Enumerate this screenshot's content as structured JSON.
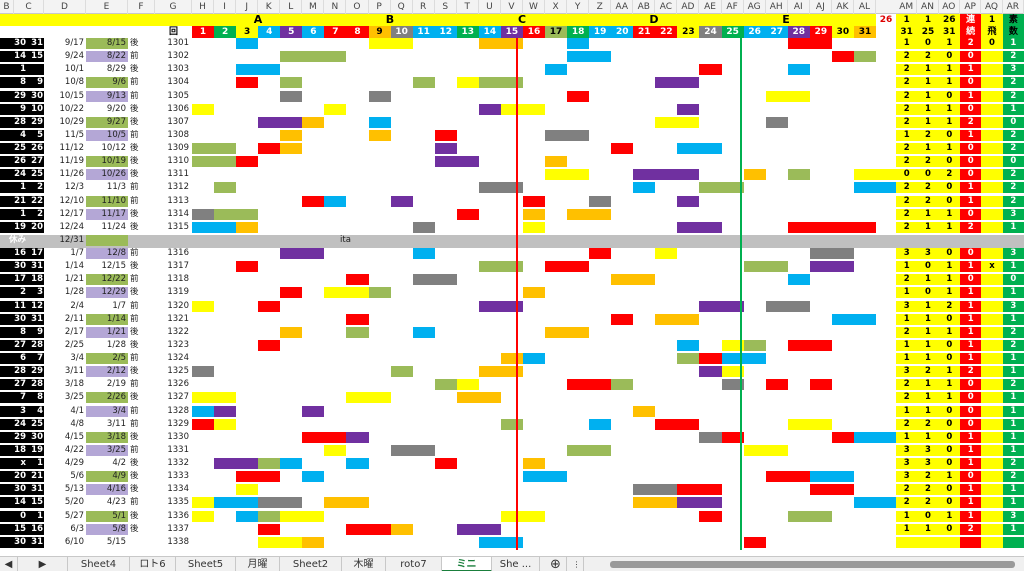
{
  "columns": [
    "B",
    "C",
    "D",
    "E",
    "F",
    "G",
    "H",
    "I",
    "J",
    "K",
    "L",
    "M",
    "N",
    "O",
    "P",
    "Q",
    "R",
    "S",
    "T",
    "U",
    "V",
    "W",
    "X",
    "Y",
    "Z",
    "AA",
    "AB",
    "AC",
    "AD",
    "AE",
    "AF",
    "AG",
    "AH",
    "AI",
    "AJ",
    "AK",
    "AL",
    "AM",
    "AN",
    "AO",
    "AP",
    "AQ",
    "AR"
  ],
  "groups": [
    {
      "label": "A"
    },
    {
      "label": "B"
    },
    {
      "label": "C"
    },
    {
      "label": "D"
    },
    {
      "label": "E"
    }
  ],
  "header": {
    "f_label": "回",
    "al_value": "26",
    "side_labels": [
      {
        "top": "1",
        "bottom": "31"
      },
      {
        "top": "1",
        "bottom": "25"
      },
      {
        "top": "26",
        "bottom": "31"
      },
      {
        "top": "連",
        "bottom": "続"
      },
      {
        "top": "1",
        "bottom": "飛"
      },
      {
        "top": "素",
        "bottom": "数"
      }
    ],
    "numbers": [
      "1",
      "2",
      "3",
      "4",
      "5",
      "6",
      "7",
      "8",
      "9",
      "10",
      "11",
      "12",
      "13",
      "14",
      "15",
      "16",
      "17",
      "18",
      "19",
      "20",
      "21",
      "22",
      "23",
      "24",
      "25",
      "26",
      "27",
      "28",
      "29",
      "30",
      "31"
    ]
  },
  "rows": [
    {
      "a": "30",
      "b": "31",
      "d1": "9/17",
      "d2": "8/15",
      "k": "後",
      "id": "1301"
    },
    {
      "a": "14",
      "b": "15",
      "d1": "9/24",
      "d2": "8/22",
      "k": "前",
      "id": "1302"
    },
    {
      "a": "1",
      "b": "",
      "d1": "10/1",
      "d2": "8/29",
      "k": "後",
      "id": "1303"
    },
    {
      "a": "8",
      "b": "9",
      "d1": "10/8",
      "d2": "9/6",
      "k": "前",
      "id": "1304"
    },
    {
      "a": "29",
      "b": "30",
      "d1": "10/15",
      "d2": "9/13",
      "k": "前",
      "id": "1305"
    },
    {
      "a": "9",
      "b": "10",
      "d1": "10/22",
      "d2": "9/20",
      "k": "後",
      "id": "1306"
    },
    {
      "a": "28",
      "b": "29",
      "d1": "10/29",
      "d2": "9/27",
      "k": "後",
      "id": "1307"
    },
    {
      "a": "4",
      "b": "5",
      "d1": "11/5",
      "d2": "10/5",
      "k": "前",
      "id": "1308"
    },
    {
      "a": "25",
      "b": "26",
      "d1": "11/12",
      "d2": "10/12",
      "k": "後",
      "id": "1309"
    },
    {
      "a": "26",
      "b": "27",
      "d1": "11/19",
      "d2": "10/19",
      "k": "後",
      "id": "1310"
    },
    {
      "a": "24",
      "b": "25",
      "d1": "11/26",
      "d2": "10/26",
      "k": "後",
      "id": "1311"
    },
    {
      "a": "1",
      "b": "2",
      "d1": "12/3",
      "d2": "11/3",
      "k": "前",
      "id": "1312"
    },
    {
      "a": "21",
      "b": "22",
      "d1": "12/10",
      "d2": "11/10",
      "k": "前",
      "id": "1313"
    },
    {
      "a": "1",
      "b": "2",
      "d1": "12/17",
      "d2": "11/17",
      "k": "後",
      "id": "1314"
    },
    {
      "a": "19",
      "b": "20",
      "d1": "12/24",
      "d2": "11/24",
      "k": "後",
      "id": "1315"
    },
    {
      "a": "休み",
      "b": "",
      "d1": "12/31",
      "d2": "",
      "k": "",
      "id": "",
      "note": "ita"
    },
    {
      "a": "16",
      "b": "17",
      "d1": "1/7",
      "d2": "12/8",
      "k": "前",
      "id": "1316"
    },
    {
      "a": "30",
      "b": "31",
      "d1": "1/14",
      "d2": "12/15",
      "k": "後",
      "id": "1317"
    },
    {
      "a": "17",
      "b": "18",
      "d1": "1/21",
      "d2": "12/22",
      "k": "前",
      "id": "1318"
    },
    {
      "a": "2",
      "b": "3",
      "d1": "1/28",
      "d2": "12/29",
      "k": "後",
      "id": "1319"
    },
    {
      "a": "11",
      "b": "12",
      "d1": "2/4",
      "d2": "1/7",
      "k": "前",
      "id": "1320"
    },
    {
      "a": "30",
      "b": "31",
      "d1": "2/11",
      "d2": "1/14",
      "k": "前",
      "id": "1321"
    },
    {
      "a": "8",
      "b": "9",
      "d1": "2/17",
      "d2": "1/21",
      "k": "後",
      "id": "1322"
    },
    {
      "a": "27",
      "b": "28",
      "d1": "2/25",
      "d2": "1/28",
      "k": "後",
      "id": "1323"
    },
    {
      "a": "6",
      "b": "7",
      "d1": "3/4",
      "d2": "2/5",
      "k": "前",
      "id": "1324"
    },
    {
      "a": "28",
      "b": "29",
      "d1": "3/11",
      "d2": "2/12",
      "k": "後",
      "id": "1325"
    },
    {
      "a": "27",
      "b": "28",
      "d1": "3/18",
      "d2": "2/19",
      "k": "前",
      "id": "1326"
    },
    {
      "a": "7",
      "b": "8",
      "d1": "3/25",
      "d2": "2/26",
      "k": "後",
      "id": "1327"
    },
    {
      "a": "3",
      "b": "4",
      "d1": "4/1",
      "d2": "3/4",
      "k": "前",
      "id": "1328"
    },
    {
      "a": "24",
      "b": "25",
      "d1": "4/8",
      "d2": "3/11",
      "k": "前",
      "id": "1329"
    },
    {
      "a": "29",
      "b": "30",
      "d1": "4/15",
      "d2": "3/18",
      "k": "後",
      "id": "1330"
    },
    {
      "a": "18",
      "b": "19",
      "d1": "4/22",
      "d2": "3/25",
      "k": "前",
      "id": "1331"
    },
    {
      "a": "x",
      "b": "1",
      "d1": "4/29",
      "d2": "4/2",
      "k": "後",
      "id": "1332"
    },
    {
      "a": "20",
      "b": "21",
      "d1": "5/6",
      "d2": "4/9",
      "k": "後",
      "id": "1333"
    },
    {
      "a": "30",
      "b": "31",
      "d1": "5/13",
      "d2": "4/16",
      "k": "後",
      "id": "1334"
    },
    {
      "a": "14",
      "b": "15",
      "d1": "5/20",
      "d2": "4/23",
      "k": "前",
      "id": "1335"
    },
    {
      "a": "0",
      "b": "1",
      "d1": "5/27",
      "d2": "5/1",
      "k": "後",
      "id": "1336"
    },
    {
      "a": "15",
      "b": "16",
      "d1": "6/3",
      "d2": "5/8",
      "k": "後",
      "id": "1337"
    },
    {
      "a": "30",
      "b": "31",
      "d1": "6/10",
      "d2": "5/15",
      "k": "",
      "id": "1338"
    }
  ],
  "side": [
    [
      "1",
      "0",
      "1",
      "2",
      "0",
      "1"
    ],
    [
      "2",
      "2",
      "0",
      "0",
      "",
      "2"
    ],
    [
      "2",
      "1",
      "1",
      "1",
      "",
      "3"
    ],
    [
      "2",
      "1",
      "1",
      "0",
      "",
      "2"
    ],
    [
      "2",
      "1",
      "0",
      "1",
      "",
      "2"
    ],
    [
      "2",
      "1",
      "1",
      "0",
      "",
      "1"
    ],
    [
      "2",
      "1",
      "1",
      "2",
      "",
      "0"
    ],
    [
      "1",
      "2",
      "0",
      "1",
      "",
      "2"
    ],
    [
      "2",
      "1",
      "1",
      "0",
      "",
      "2"
    ],
    [
      "2",
      "2",
      "0",
      "0",
      "",
      "0"
    ],
    [
      "0",
      "0",
      "2",
      "0",
      "",
      "2"
    ],
    [
      "2",
      "2",
      "0",
      "1",
      "",
      "2"
    ],
    [
      "2",
      "2",
      "0",
      "1",
      "",
      "2"
    ],
    [
      "2",
      "1",
      "1",
      "0",
      "",
      "3"
    ],
    [
      "2",
      "1",
      "1",
      "2",
      "",
      "1"
    ],
    [
      "",
      "",
      "",
      "",
      "",
      ""
    ],
    [
      "3",
      "3",
      "0",
      "0",
      "",
      "3"
    ],
    [
      "1",
      "0",
      "1",
      "1",
      "x",
      "1"
    ],
    [
      "2",
      "1",
      "1",
      "0",
      "",
      "0"
    ],
    [
      "1",
      "0",
      "1",
      "1",
      "",
      "1"
    ],
    [
      "3",
      "1",
      "2",
      "1",
      "",
      "3"
    ],
    [
      "1",
      "1",
      "0",
      "1",
      "",
      "1"
    ],
    [
      "2",
      "1",
      "1",
      "1",
      "",
      "2"
    ],
    [
      "1",
      "1",
      "0",
      "1",
      "",
      "2"
    ],
    [
      "1",
      "1",
      "0",
      "1",
      "",
      "1"
    ],
    [
      "3",
      "2",
      "1",
      "2",
      "",
      "1"
    ],
    [
      "2",
      "1",
      "1",
      "0",
      "",
      "2"
    ],
    [
      "2",
      "1",
      "1",
      "0",
      "",
      "1"
    ],
    [
      "1",
      "1",
      "0",
      "0",
      "",
      "1"
    ],
    [
      "2",
      "2",
      "0",
      "0",
      "",
      "1"
    ],
    [
      "1",
      "1",
      "0",
      "1",
      "",
      "1"
    ],
    [
      "3",
      "3",
      "0",
      "1",
      "",
      "1"
    ],
    [
      "3",
      "3",
      "0",
      "1",
      "",
      "2"
    ],
    [
      "3",
      "2",
      "1",
      "0",
      "",
      "2"
    ],
    [
      "2",
      "2",
      "0",
      "1",
      "",
      "1"
    ],
    [
      "2",
      "2",
      "0",
      "1",
      "",
      "1"
    ],
    [
      "1",
      "0",
      "1",
      "1",
      "",
      "3"
    ],
    [
      "1",
      "1",
      "0",
      "2",
      "",
      "1"
    ],
    [
      "",
      "",
      "",
      "",
      "",
      ""
    ]
  ],
  "sheet_tabs": [
    "Sheet4",
    "ロト6",
    "Sheet5",
    "月曜",
    "Sheet2",
    "木曜",
    "roto7",
    "ミニ",
    "She ..."
  ],
  "active_tab": "ミニ",
  "colors": {
    "yellow": "#ffff00",
    "red": "#ff0000",
    "green": "#00b050",
    "blue": "#00b0f0",
    "orange": "#ffc000",
    "gray": "#808080",
    "purple": "#7030a0",
    "olive": "#9bbb59"
  }
}
